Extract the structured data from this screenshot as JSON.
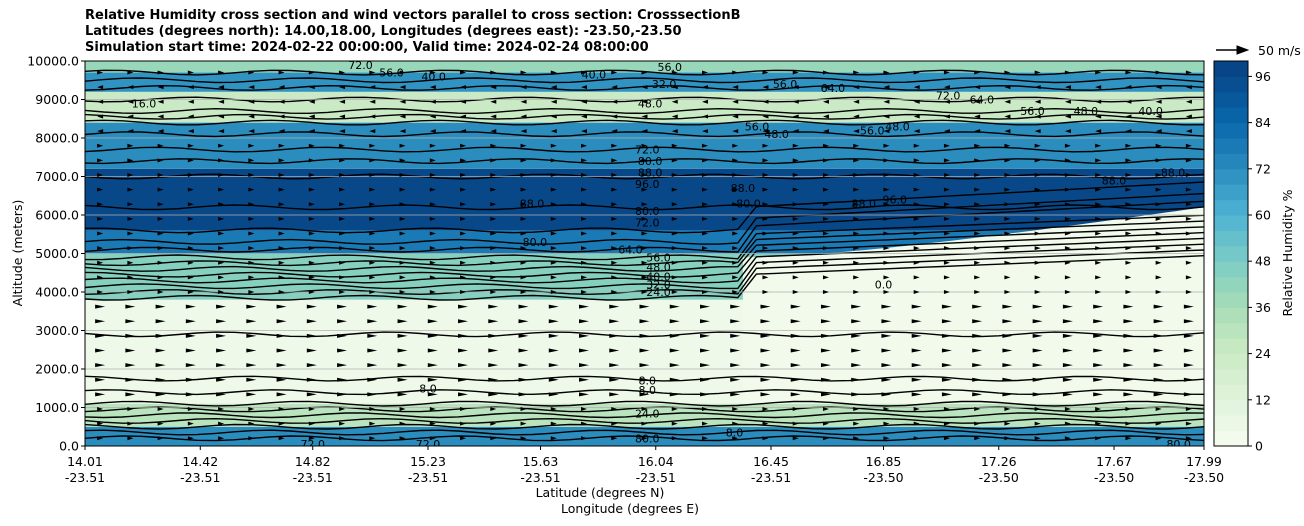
{
  "chart_data": {
    "type": "heatmap",
    "title_lines": [
      "Relative Humidity cross section and wind vectors parallel to cross section: CrosssectionB",
      "Latitudes (degrees north): 14.00,18.00, Longitudes (degrees east): -23.50,-23.50",
      "Simulation start time: 2024-02-22 00:00:00, Valid time: 2024-02-24 08:00:00"
    ],
    "ylabel": "Altitude (meters)",
    "xlabel_lines": [
      "Latitude (degrees N)",
      "Longitude (degrees E)"
    ],
    "ylim": [
      0,
      10000
    ],
    "xlim": [
      14.01,
      17.99
    ],
    "y_ticks": [
      {
        "value": 0,
        "label": "0.0"
      },
      {
        "value": 1000,
        "label": "1000.0"
      },
      {
        "value": 2000,
        "label": "2000.0"
      },
      {
        "value": 3000,
        "label": "3000.0"
      },
      {
        "value": 4000,
        "label": "4000.0"
      },
      {
        "value": 5000,
        "label": "5000.0"
      },
      {
        "value": 6000,
        "label": "6000.0"
      },
      {
        "value": 7000,
        "label": "7000.0"
      },
      {
        "value": 8000,
        "label": "8000.0"
      },
      {
        "value": 9000,
        "label": "9000.0"
      },
      {
        "value": 10000,
        "label": "10000.0"
      }
    ],
    "x_ticks": [
      {
        "value": 14.01,
        "lat": "14.01",
        "lon": "-23.51"
      },
      {
        "value": 14.42,
        "lat": "14.42",
        "lon": "-23.51"
      },
      {
        "value": 14.82,
        "lat": "14.82",
        "lon": "-23.51"
      },
      {
        "value": 15.23,
        "lat": "15.23",
        "lon": "-23.51"
      },
      {
        "value": 15.63,
        "lat": "15.63",
        "lon": "-23.51"
      },
      {
        "value": 16.04,
        "lat": "16.04",
        "lon": "-23.51"
      },
      {
        "value": 16.45,
        "lat": "16.45",
        "lon": "-23.51"
      },
      {
        "value": 16.85,
        "lat": "16.85",
        "lon": "-23.50"
      },
      {
        "value": 17.26,
        "lat": "17.26",
        "lon": "-23.50"
      },
      {
        "value": 17.67,
        "lat": "17.67",
        "lon": "-23.50"
      },
      {
        "value": 17.99,
        "lat": "17.99",
        "lon": "-23.50"
      }
    ],
    "grid": "horizontal",
    "colorbar": {
      "label": "Relative Humidity %",
      "range": [
        0,
        100
      ],
      "ticks": [
        "0",
        "12",
        "24",
        "36",
        "48",
        "60",
        "72",
        "84",
        "96"
      ],
      "colormap": "GnBu"
    },
    "quiver_key": "50 m/s",
    "rh_bands": [
      {
        "y0": 0,
        "y1": 500,
        "rh": 72
      },
      {
        "y0": 500,
        "y1": 1100,
        "rh": 30
      },
      {
        "y0": 1100,
        "y1": 3800,
        "rh": 4
      },
      {
        "y0": 3800,
        "y1": 5000,
        "rh": 45
      },
      {
        "y0": 5000,
        "y1": 5600,
        "rh": 78
      },
      {
        "y0": 5600,
        "y1": 7200,
        "rh": 97
      },
      {
        "y0": 7200,
        "y1": 8400,
        "rh": 72
      },
      {
        "y0": 8400,
        "y1": 9200,
        "rh": 25
      },
      {
        "y0": 9200,
        "y1": 9700,
        "rh": 70
      },
      {
        "y0": 9700,
        "y1": 10000,
        "rh": 40
      }
    ],
    "dry_region": {
      "x_from": 16.35,
      "x_to": 17.99,
      "y_from": 1100,
      "y_to_left": 4900,
      "y_to_right": 6200,
      "rh": 3
    },
    "contour_annotations": [
      {
        "label": "16.0",
        "x": 14.22,
        "y": 8900
      },
      {
        "label": "72.0",
        "x": 14.99,
        "y": 9900
      },
      {
        "label": "56.0",
        "x": 15.1,
        "y": 9700
      },
      {
        "label": "40.0",
        "x": 15.25,
        "y": 9600
      },
      {
        "label": "40.0",
        "x": 15.82,
        "y": 9650
      },
      {
        "label": "56.0",
        "x": 16.09,
        "y": 9850
      },
      {
        "label": "32.0",
        "x": 16.07,
        "y": 9400
      },
      {
        "label": "48.0",
        "x": 16.02,
        "y": 8900
      },
      {
        "label": "56.0",
        "x": 16.5,
        "y": 9400
      },
      {
        "label": "64.0",
        "x": 16.67,
        "y": 9300
      },
      {
        "label": "72.0",
        "x": 17.08,
        "y": 9100
      },
      {
        "label": "64.0",
        "x": 17.2,
        "y": 9000
      },
      {
        "label": "56.0",
        "x": 17.38,
        "y": 8700
      },
      {
        "label": "48.0",
        "x": 17.57,
        "y": 8700
      },
      {
        "label": "40.0",
        "x": 17.8,
        "y": 8700
      },
      {
        "label": "56.0",
        "x": 16.4,
        "y": 8300
      },
      {
        "label": "48.0",
        "x": 16.47,
        "y": 8100
      },
      {
        "label": "56.0",
        "x": 16.81,
        "y": 8200
      },
      {
        "label": "48.0",
        "x": 16.9,
        "y": 8300
      },
      {
        "label": "72.0",
        "x": 16.01,
        "y": 7700
      },
      {
        "label": "80.0",
        "x": 16.02,
        "y": 7400
      },
      {
        "label": "88.0",
        "x": 16.02,
        "y": 7100
      },
      {
        "label": "96.0",
        "x": 16.01,
        "y": 6800
      },
      {
        "label": "88.0",
        "x": 15.6,
        "y": 6300
      },
      {
        "label": "80.0",
        "x": 16.01,
        "y": 6100
      },
      {
        "label": "72.0",
        "x": 16.01,
        "y": 5800
      },
      {
        "label": "80.0",
        "x": 15.61,
        "y": 5300
      },
      {
        "label": "64.0",
        "x": 15.95,
        "y": 5100
      },
      {
        "label": "56.0",
        "x": 16.05,
        "y": 4900
      },
      {
        "label": "48.0",
        "x": 16.05,
        "y": 4650
      },
      {
        "label": "40.0",
        "x": 16.05,
        "y": 4400
      },
      {
        "label": "32.0",
        "x": 16.05,
        "y": 4200
      },
      {
        "label": "24.0",
        "x": 16.05,
        "y": 4000
      },
      {
        "label": "0.0",
        "x": 16.85,
        "y": 4200
      },
      {
        "label": "88.0",
        "x": 16.35,
        "y": 6700
      },
      {
        "label": "80.0",
        "x": 16.37,
        "y": 6300
      },
      {
        "label": "88.0",
        "x": 16.78,
        "y": 6300
      },
      {
        "label": "96.0",
        "x": 16.89,
        "y": 6400
      },
      {
        "label": "88.0",
        "x": 17.67,
        "y": 6900
      },
      {
        "label": "88.0",
        "x": 17.88,
        "y": 7100
      },
      {
        "label": "8.0",
        "x": 15.23,
        "y": 1500
      },
      {
        "label": "8.0",
        "x": 16.01,
        "y": 1700
      },
      {
        "label": "8.0",
        "x": 16.01,
        "y": 1450
      },
      {
        "label": "24.0",
        "x": 16.01,
        "y": 850
      },
      {
        "label": "80.0",
        "x": 16.01,
        "y": 200
      },
      {
        "label": "72.0",
        "x": 14.82,
        "y": 50
      },
      {
        "label": "72.0",
        "x": 15.23,
        "y": 50
      },
      {
        "label": "8.0",
        "x": 16.32,
        "y": 350
      },
      {
        "label": "80.0",
        "x": 17.9,
        "y": 50
      }
    ]
  }
}
